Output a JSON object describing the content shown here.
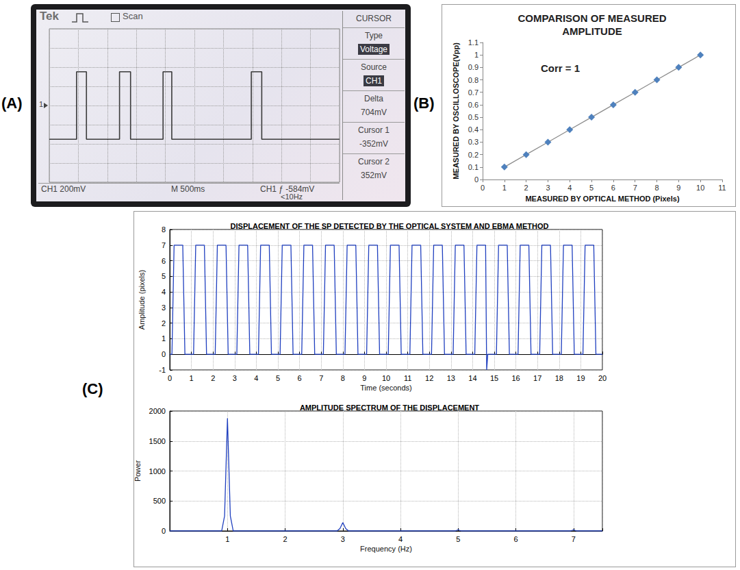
{
  "chart_data": [
    {
      "panel": "(A)",
      "type": "line",
      "header": [
        "Tek",
        "Scan"
      ],
      "menu_title": "CURSOR",
      "menu": [
        {
          "label": "Type",
          "value": "Voltage"
        },
        {
          "label": "Source",
          "value": "CH1"
        },
        {
          "label": "Delta",
          "value": "704mV"
        },
        {
          "label": "Cursor 1",
          "value": "-352mV"
        },
        {
          "label": "Cursor 2",
          "value": "352mV"
        }
      ],
      "footer": [
        "CH1 200mV",
        "M 500ms",
        "CH1 ƒ -584mV",
        "<10Hz"
      ],
      "channel_marker": "1",
      "x": [
        0,
        0.47,
        0.47,
        0.64,
        0.64,
        1.21,
        1.21,
        1.4,
        1.4,
        1.96,
        1.96,
        2.11,
        2.11,
        3.48,
        3.48,
        3.66,
        3.66,
        5
      ],
      "values": [
        -352,
        -352,
        352,
        352,
        -352,
        -352,
        352,
        352,
        -352,
        -352,
        352,
        352,
        -352,
        -352,
        352,
        352,
        -352,
        -352
      ],
      "color": "#3a3a3a",
      "xlim": [
        0,
        5
      ],
      "xticks": [
        0,
        0.5,
        1,
        1.5,
        2,
        2.5,
        3,
        3.5,
        4,
        4.5,
        5
      ],
      "ylim": [
        -800,
        800
      ],
      "yticks": [
        -800,
        -600,
        -400,
        -200,
        0,
        200,
        400,
        600,
        800
      ],
      "grid": true,
      "tick_labels": false
    },
    {
      "panel": "(B)",
      "type": "line",
      "title": "COMPARISON OF MEASURED AMPLITUDE",
      "annotation": "Corr = 1",
      "x_label": "MEASURED BY OPTICAL METHOD (Pixels)",
      "y_label": "MEASURED BY OSCILLOSCOPE(Vpp)",
      "x": [
        1,
        2,
        3,
        4,
        5,
        6,
        7,
        8,
        9,
        10
      ],
      "values": [
        0.1,
        0.2,
        0.3,
        0.4,
        0.5,
        0.6,
        0.7,
        0.8,
        0.9,
        1.0
      ],
      "color": "#4f81bd",
      "marker": "diamond",
      "xlim": [
        0,
        11
      ],
      "xticks": [
        0,
        1,
        2,
        3,
        4,
        5,
        6,
        7,
        8,
        9,
        10,
        11
      ],
      "ylim": [
        0,
        1.1
      ],
      "yticks": [
        0,
        0.1,
        0.2,
        0.3,
        0.4,
        0.5,
        0.6,
        0.7,
        0.8,
        0.9,
        1,
        1.1
      ],
      "grid": false
    },
    {
      "panel": "(C)",
      "type": "line",
      "title": "DISPLACEMENT OF THE SP DETECTED BY THE OPTICAL SYSTEM AND EBMA METHOD",
      "x_label": "Time (seconds)",
      "y_label": "Amplitude (pixels)",
      "x": [
        0,
        0.1,
        0.2,
        0.6,
        0.7,
        1.1,
        1.2,
        1.6,
        1.7,
        2.1,
        2.2,
        2.6,
        2.7,
        3.1,
        3.2,
        3.6,
        3.7,
        4.1,
        4.2,
        4.6,
        4.7,
        5.1,
        5.2,
        5.6,
        5.7,
        6.1,
        6.2,
        6.6,
        6.7,
        7.1,
        7.2,
        7.6,
        7.7,
        8.1,
        8.2,
        8.6,
        8.7,
        9.1,
        9.2,
        9.6,
        9.7,
        10.1,
        10.2,
        10.6,
        10.7,
        11.1,
        11.2,
        11.6,
        11.7,
        12.1,
        12.2,
        12.6,
        12.7,
        13.1,
        13.2,
        13.6,
        13.7,
        14.1,
        14.2,
        14.6,
        14.65,
        14.7,
        15.1,
        15.2,
        15.6,
        15.7,
        16.1,
        16.2,
        16.6,
        16.7,
        17.1,
        17.2,
        17.6,
        17.7,
        18.1,
        18.2,
        18.6,
        18.7,
        19.1,
        19.2,
        19.6,
        19.7,
        20
      ],
      "values": [
        0,
        0,
        7,
        7,
        0,
        0,
        7,
        7,
        0,
        0,
        7,
        7,
        0,
        0,
        7,
        7,
        0,
        0,
        7,
        7,
        0,
        0,
        7,
        7,
        0,
        0,
        7,
        7,
        0,
        0,
        7,
        7,
        0,
        0,
        7,
        7,
        0,
        0,
        7,
        7,
        0,
        0,
        7,
        7,
        0,
        0,
        7,
        7,
        0,
        0,
        7,
        7,
        0,
        0,
        7,
        7,
        0,
        0,
        7,
        7,
        -1,
        0,
        0,
        7,
        7,
        0,
        0,
        7,
        7,
        0,
        0,
        7,
        7,
        0,
        0,
        7,
        7,
        0,
        0,
        7,
        7,
        0,
        0
      ],
      "color": "#1f3fbf",
      "xlim": [
        0,
        20
      ],
      "xticks": [
        0,
        1,
        2,
        3,
        4,
        5,
        6,
        7,
        8,
        9,
        10,
        11,
        12,
        13,
        14,
        15,
        16,
        17,
        18,
        19,
        20
      ],
      "ylim": [
        -1,
        8
      ],
      "yticks": [
        -1,
        0,
        1,
        2,
        3,
        4,
        5,
        6,
        7,
        8
      ],
      "grid": true
    },
    {
      "type": "line",
      "title": "AMPLITUDE SPECTRUM OF THE DISPLACEMENT",
      "x_label": "Frequency (Hz)",
      "y_label": "Power",
      "x": [
        0,
        0.9,
        0.95,
        1,
        1.05,
        1.1,
        2.9,
        2.95,
        3,
        3.05,
        3.1,
        4.95,
        5,
        5.05,
        6.95,
        7,
        7.05,
        7.5
      ],
      "values": [
        0,
        0,
        250,
        1880,
        250,
        0,
        0,
        40,
        140,
        40,
        0,
        0,
        20,
        0,
        0,
        20,
        0,
        0
      ],
      "color": "#1f3fbf",
      "xlim": [
        0,
        7.5
      ],
      "xticks": [
        1,
        2,
        3,
        4,
        5,
        6,
        7
      ],
      "ylim": [
        0,
        2000
      ],
      "yticks": [
        0,
        500,
        1000,
        1500,
        2000
      ],
      "grid": true
    }
  ]
}
